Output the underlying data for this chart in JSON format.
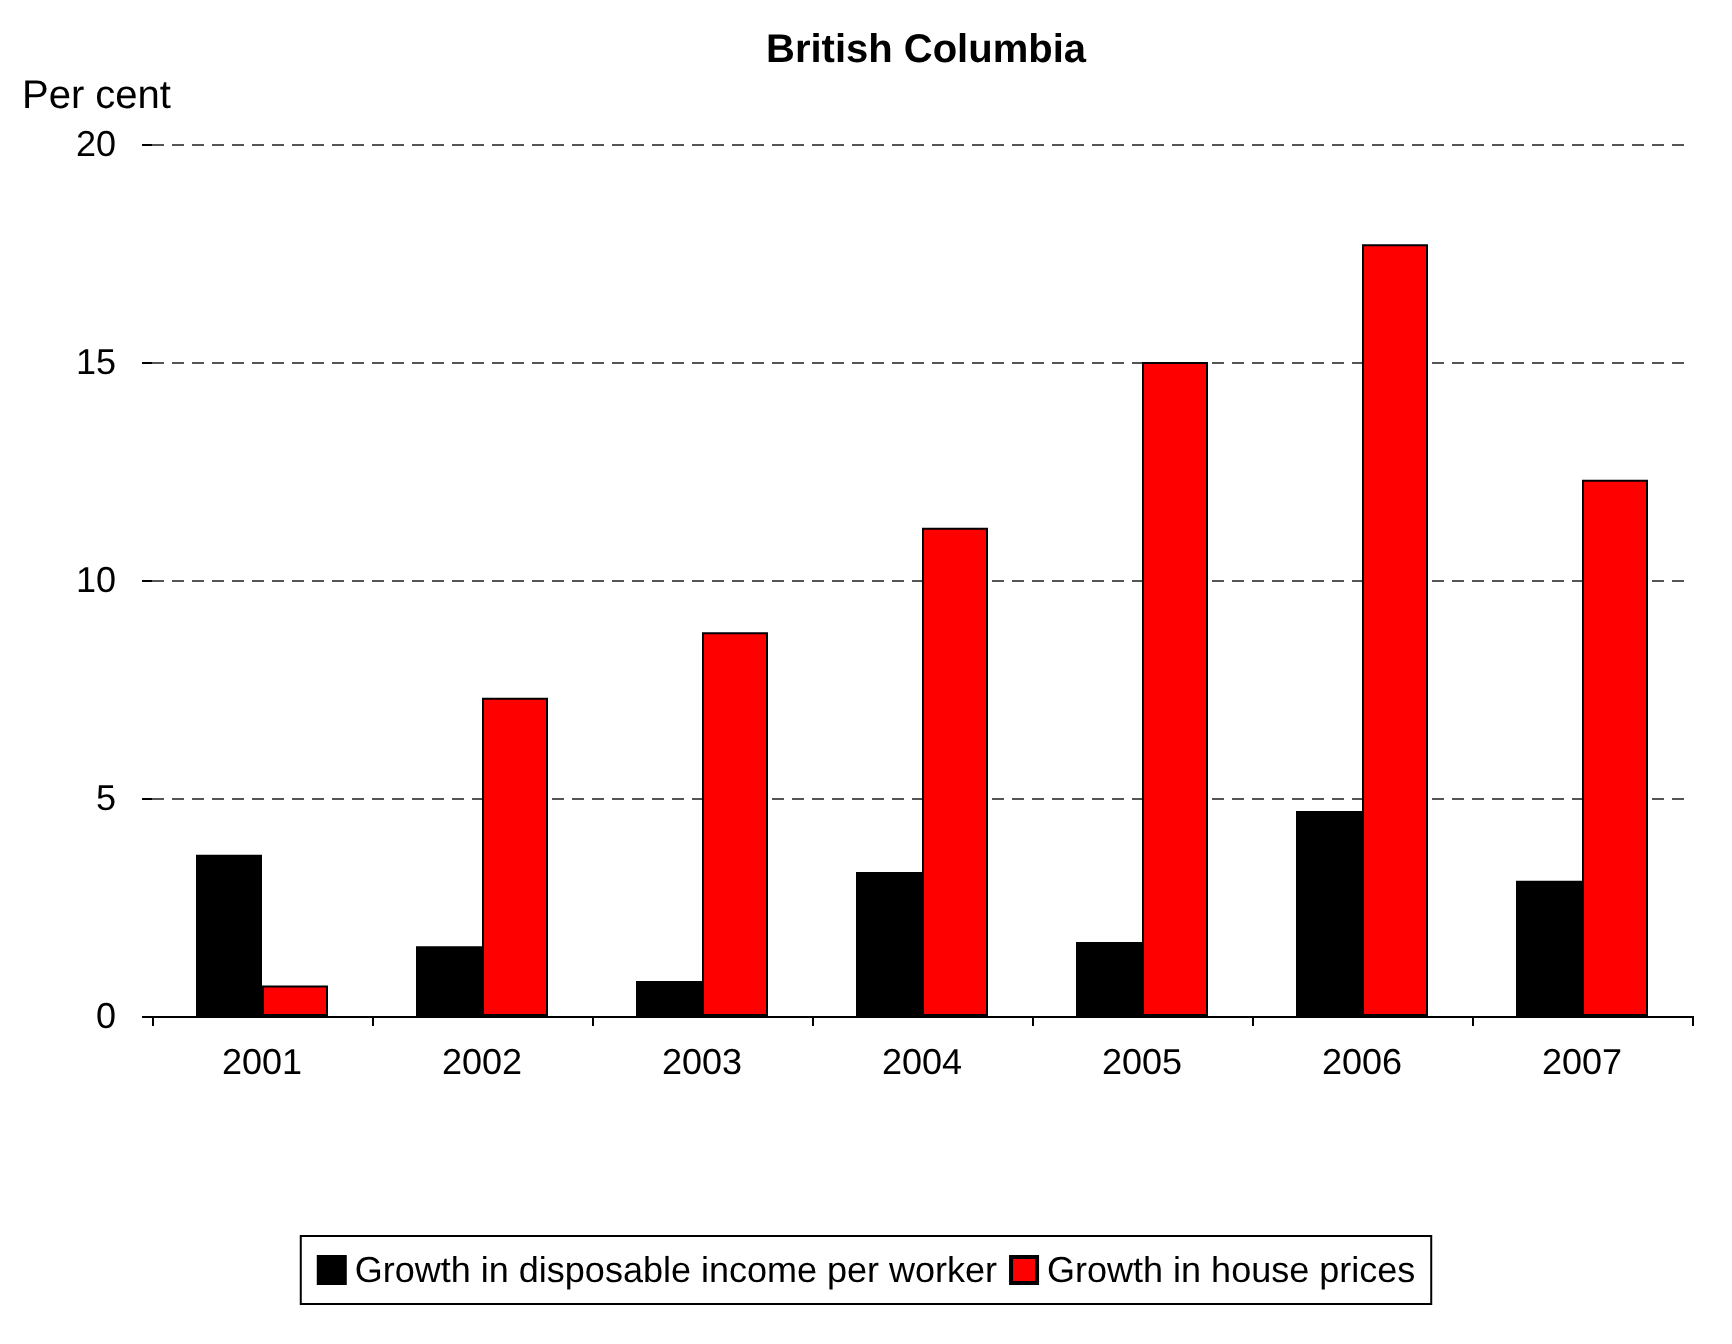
{
  "chart_data": {
    "type": "bar",
    "title": "British Columbia",
    "ylabel": "Per cent",
    "categories": [
      "2001",
      "2002",
      "2003",
      "2004",
      "2005",
      "2006",
      "2007"
    ],
    "series": [
      {
        "name": "Growth in disposable income per worker",
        "color": "#000000",
        "values": [
          3.7,
          1.6,
          0.8,
          3.3,
          1.7,
          4.7,
          3.1
        ]
      },
      {
        "name": "Growth in house prices",
        "color": "#ff0000",
        "values": [
          0.7,
          7.3,
          8.8,
          11.2,
          15.0,
          17.7,
          12.3
        ]
      }
    ],
    "ylim": [
      0,
      20
    ],
    "yticks": [
      0,
      5,
      10,
      15,
      20
    ],
    "grid": "y",
    "legend": "bottom"
  }
}
